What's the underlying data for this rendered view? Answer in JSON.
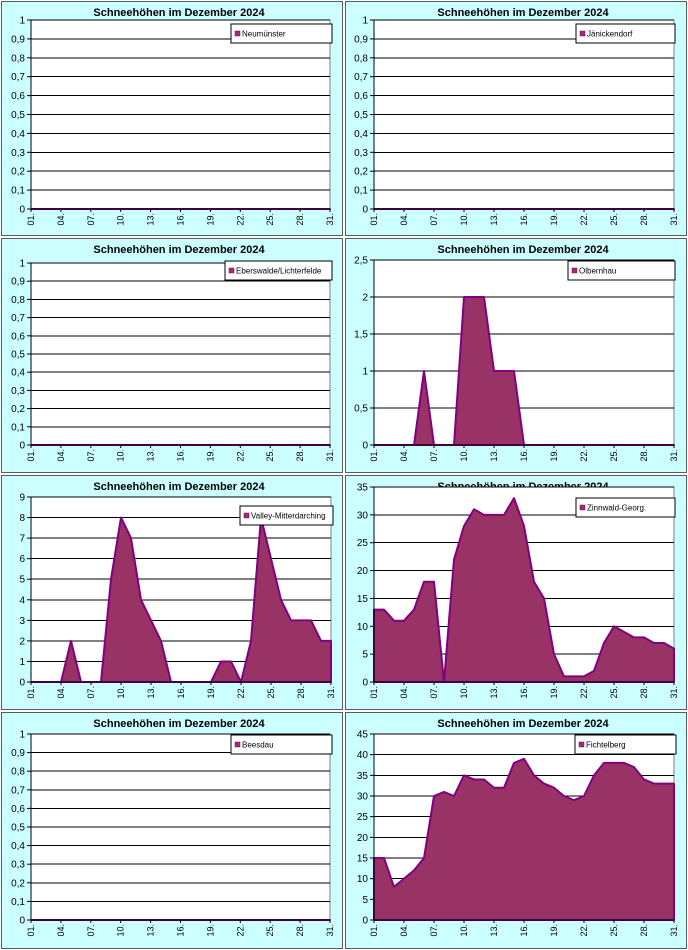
{
  "colors": {
    "panel_bg": "#ccffff",
    "plot_bg": "#ffffff",
    "grid": "#000000",
    "area_fill": "#993366",
    "area_stroke": "#800080"
  },
  "chart_data": [
    {
      "type": "area",
      "title": "Schneehöhen im Dezember 2024",
      "series": [
        {
          "name": "Neumünster",
          "values": [
            0,
            0,
            0,
            0,
            0,
            0,
            0,
            0,
            0,
            0,
            0,
            0,
            0,
            0,
            0,
            0,
            0,
            0,
            0,
            0,
            0,
            0,
            0,
            0,
            0,
            0,
            0,
            0,
            0,
            0,
            0
          ]
        }
      ],
      "x_ticks": [
        "01.",
        "04.",
        "07.",
        "10.",
        "13.",
        "16.",
        "19.",
        "22.",
        "25.",
        "28.",
        "31."
      ],
      "ylim": [
        0,
        1
      ],
      "y_ticks": [
        "0",
        "0,1",
        "0,2",
        "0,3",
        "0,4",
        "0,5",
        "0,6",
        "0,7",
        "0,8",
        "0,9",
        "1"
      ],
      "grid": true,
      "legend": "top-right"
    },
    {
      "type": "area",
      "title": "Schneehöhen im Dezember 2024",
      "series": [
        {
          "name": "Jänickendorf",
          "values": [
            0,
            0,
            0,
            0,
            0,
            0,
            0,
            0,
            0,
            0,
            0,
            0,
            0,
            0,
            0,
            0,
            0,
            0,
            0,
            0,
            0,
            0,
            0,
            0,
            0,
            0,
            0,
            0,
            0,
            0,
            0
          ]
        }
      ],
      "x_ticks": [
        "01.",
        "04.",
        "07.",
        "10.",
        "13.",
        "16.",
        "19.",
        "22.",
        "25.",
        "28.",
        "31."
      ],
      "ylim": [
        0,
        1
      ],
      "y_ticks": [
        "0",
        "0,1",
        "0,2",
        "0,3",
        "0,4",
        "0,5",
        "0,6",
        "0,7",
        "0,8",
        "0,9",
        "1"
      ],
      "grid": true,
      "legend": "top-right"
    },
    {
      "type": "area",
      "title": "Schneehöhen im Dezember 2024",
      "series": [
        {
          "name": "Eberswalde/Lichterfelde",
          "values": [
            0,
            0,
            0,
            0,
            0,
            0,
            0,
            0,
            0,
            0,
            0,
            0,
            0,
            0,
            0,
            0,
            0,
            0,
            0,
            0,
            0,
            0,
            0,
            0,
            0,
            0,
            0,
            0,
            0,
            0,
            0
          ]
        }
      ],
      "x_ticks": [
        "01.",
        "04.",
        "07.",
        "10.",
        "13.",
        "16.",
        "19.",
        "22.",
        "25.",
        "28.",
        "31."
      ],
      "ylim": [
        0,
        1
      ],
      "y_ticks": [
        "0",
        "0,1",
        "0,2",
        "0,3",
        "0,4",
        "0,5",
        "0,6",
        "0,7",
        "0,8",
        "0,9",
        "1"
      ],
      "grid": true,
      "legend": "top-right"
    },
    {
      "type": "area",
      "title": "Schneehöhen im Dezember 2024",
      "series": [
        {
          "name": "Olbernhau",
          "values": [
            0,
            0,
            0,
            0,
            0,
            1,
            0,
            0,
            0,
            2,
            2,
            2,
            1,
            1,
            1,
            0,
            0,
            0,
            0,
            0,
            0,
            0,
            0,
            0,
            0,
            0,
            0,
            0,
            0,
            0,
            0
          ]
        }
      ],
      "x_ticks": [
        "01.",
        "04.",
        "07.",
        "10.",
        "13.",
        "16.",
        "19.",
        "22.",
        "25.",
        "28.",
        "31."
      ],
      "ylim": [
        0,
        2.5
      ],
      "y_ticks": [
        "0",
        "0,5",
        "1",
        "1,5",
        "2",
        "2,5"
      ],
      "grid": true,
      "legend": "top-right"
    },
    {
      "type": "area",
      "title": "Schneehöhen im Dezember 2024",
      "series": [
        {
          "name": "Valley-Mitterdarching",
          "values": [
            0,
            0,
            0,
            0,
            2,
            0,
            0,
            0,
            5,
            8,
            7,
            4,
            3,
            2,
            0,
            0,
            0,
            0,
            0,
            1,
            1,
            0,
            2,
            8,
            6,
            4,
            3,
            3,
            3,
            2,
            2
          ]
        }
      ],
      "x_ticks": [
        "01.",
        "04.",
        "07.",
        "10.",
        "13.",
        "16.",
        "19.",
        "22.",
        "25.",
        "28.",
        "31."
      ],
      "ylim": [
        0,
        9
      ],
      "y_ticks": [
        "0",
        "1",
        "2",
        "3",
        "4",
        "5",
        "6",
        "7",
        "8",
        "9"
      ],
      "grid": true,
      "legend": "top-right"
    },
    {
      "type": "area",
      "title": "Schneehöhen im Dezember 2024",
      "series": [
        {
          "name": "Zinnwald-Georg.",
          "values": [
            13,
            13,
            11,
            11,
            13,
            18,
            18,
            0,
            22,
            28,
            31,
            30,
            30,
            30,
            33,
            28,
            18,
            15,
            5,
            1,
            1,
            1,
            2,
            7,
            10,
            9,
            8,
            8,
            7,
            7,
            6
          ]
        }
      ],
      "x_ticks": [
        "01.",
        "04.",
        "07.",
        "10.",
        "13.",
        "16.",
        "19.",
        "22.",
        "25.",
        "28.",
        "31."
      ],
      "ylim": [
        0,
        35
      ],
      "y_ticks": [
        "0",
        "5",
        "10",
        "15",
        "20",
        "25",
        "30",
        "35"
      ],
      "grid": true,
      "legend": "top-right"
    },
    {
      "type": "area",
      "title": "Schneehöhen im Dezember 2024",
      "series": [
        {
          "name": "Beesdau",
          "values": [
            0,
            0,
            0,
            0,
            0,
            0,
            0,
            0,
            0,
            0,
            0,
            0,
            0,
            0,
            0,
            0,
            0,
            0,
            0,
            0,
            0,
            0,
            0,
            0,
            0,
            0,
            0,
            0,
            0,
            0,
            0
          ]
        }
      ],
      "x_ticks": [
        "01.",
        "04.",
        "07.",
        "10.",
        "13.",
        "16.",
        "19.",
        "22.",
        "25.",
        "28.",
        "31."
      ],
      "ylim": [
        0,
        1
      ],
      "y_ticks": [
        "0",
        "0,1",
        "0,2",
        "0,3",
        "0,4",
        "0,5",
        "0,6",
        "0,7",
        "0,8",
        "0,9",
        "1"
      ],
      "grid": true,
      "legend": "top-right"
    },
    {
      "type": "area",
      "title": "Schneehöhen im Dezember 2024",
      "series": [
        {
          "name": "Fichtelberg",
          "values": [
            15,
            15,
            8,
            10,
            12,
            15,
            30,
            31,
            30,
            35,
            34,
            34,
            32,
            32,
            38,
            39,
            35,
            33,
            32,
            30,
            29,
            30,
            35,
            38,
            38,
            38,
            37,
            34,
            33,
            33,
            33
          ]
        }
      ],
      "x_ticks": [
        "01.",
        "04.",
        "07.",
        "10.",
        "13.",
        "16.",
        "19.",
        "22.",
        "25.",
        "28.",
        "31."
      ],
      "ylim": [
        0,
        45
      ],
      "y_ticks": [
        "0",
        "5",
        "10",
        "15",
        "20",
        "25",
        "30",
        "35",
        "40",
        "45"
      ],
      "grid": true,
      "legend": "top-right"
    }
  ]
}
